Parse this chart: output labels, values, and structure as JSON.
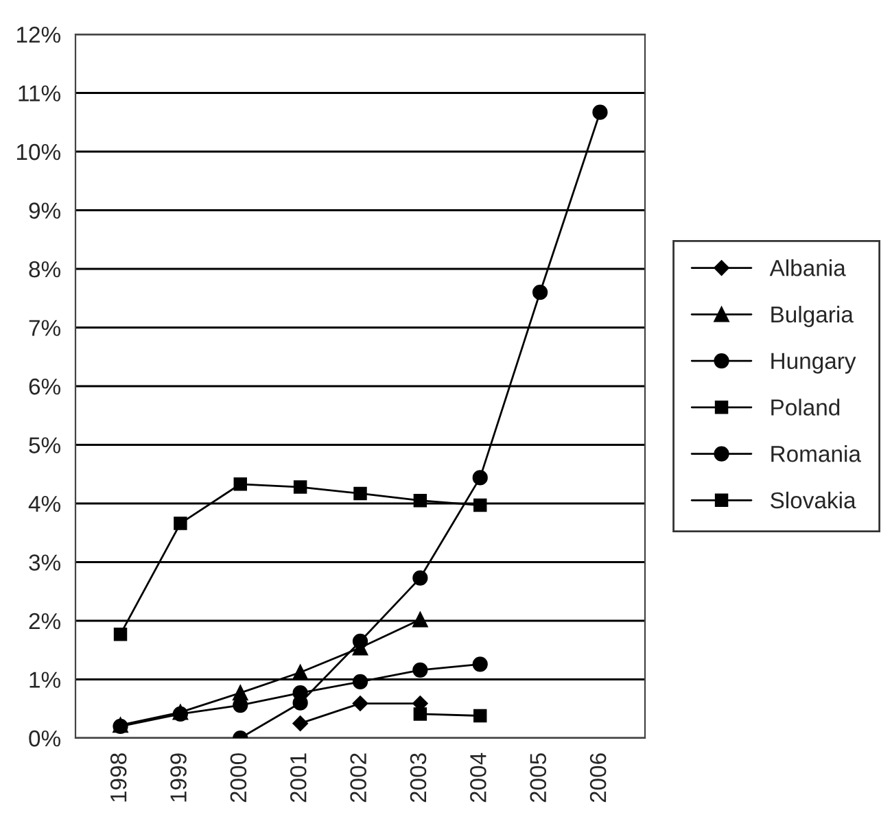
{
  "chart_data": {
    "type": "line",
    "categories": [
      "1998",
      "1999",
      "2000",
      "2001",
      "2002",
      "2003",
      "2004",
      "2005",
      "2006"
    ],
    "series": [
      {
        "name": "Albania",
        "color": "#000000",
        "marker": "diamond",
        "values": [
          null,
          null,
          null,
          0.25,
          0.59,
          0.59,
          null,
          null,
          null
        ]
      },
      {
        "name": "Bulgaria",
        "color": "#000000",
        "marker": "triangle",
        "values": [
          0.22,
          0.44,
          0.77,
          1.12,
          1.54,
          2.02,
          null,
          null,
          null
        ]
      },
      {
        "name": "Hungary",
        "color": "#000000",
        "marker": "circle",
        "values": [
          0.2,
          0.41,
          0.56,
          0.77,
          0.96,
          1.16,
          1.26,
          null,
          null
        ]
      },
      {
        "name": "Poland",
        "color": "#000000",
        "marker": "square",
        "values": [
          1.77,
          3.66,
          4.33,
          4.28,
          4.17,
          4.05,
          3.97,
          null,
          null
        ]
      },
      {
        "name": "Romania",
        "color": "#000000",
        "marker": "circle",
        "values": [
          null,
          null,
          0.0,
          0.6,
          1.65,
          2.73,
          4.44,
          7.6,
          10.67
        ]
      },
      {
        "name": "Slovakia",
        "color": "#000000",
        "marker": "square",
        "values": [
          null,
          null,
          null,
          null,
          null,
          0.41,
          0.38,
          null,
          null
        ]
      }
    ],
    "ylim": [
      0,
      12
    ],
    "yticks": [
      {
        "value": 0,
        "label": "0%"
      },
      {
        "value": 1,
        "label": "1%"
      },
      {
        "value": 2,
        "label": "2%"
      },
      {
        "value": 3,
        "label": "3%"
      },
      {
        "value": 4,
        "label": "4%"
      },
      {
        "value": 5,
        "label": "5%"
      },
      {
        "value": 6,
        "label": "6%"
      },
      {
        "value": 7,
        "label": "7%"
      },
      {
        "value": 8,
        "label": "8%"
      },
      {
        "value": 9,
        "label": "9%"
      },
      {
        "value": 10,
        "label": "10%"
      },
      {
        "value": 11,
        "label": "11%"
      },
      {
        "value": 12,
        "label": "12%"
      }
    ],
    "grid": "y",
    "legend": "right"
  }
}
